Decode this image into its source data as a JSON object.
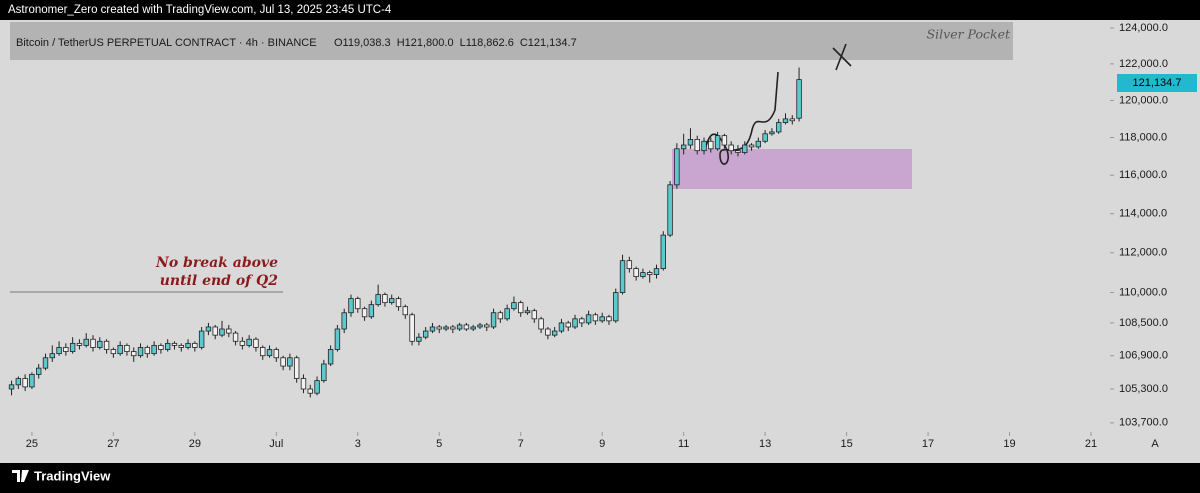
{
  "chart_data": {
    "type": "candlestick",
    "title": "Astronomer_Zero created with TradingView.com, Jul 13, 2025 23:45 UTC-4",
    "symbol": "Bitcoin / TetherUS PERPETUAL CONTRACT · 4h · BINANCE",
    "legend_ohlc": [
      "O119,038.3",
      "H121,800.0",
      "L118,862.6",
      "C121,134.7"
    ],
    "last_price_label": "121,134.7",
    "brand": "TradingView",
    "scale_mode": "A",
    "annotations": {
      "zone_label": "Silver Pocket",
      "note": [
        "No break above",
        "until end of Q2"
      ]
    },
    "log": true,
    "up_color": "#5ec8cf",
    "down_color": "#f2f2f2",
    "xlim": [
      -1.7,
      161.8
    ],
    "ylim": [
      103270,
      124450
    ],
    "xticks": [
      {
        "value": 3,
        "label": "25"
      },
      {
        "value": 15,
        "label": "27"
      },
      {
        "value": 27,
        "label": "29"
      },
      {
        "value": 39,
        "label": "Jul"
      },
      {
        "value": 51,
        "label": "3"
      },
      {
        "value": 63,
        "label": "5"
      },
      {
        "value": 75,
        "label": "7"
      },
      {
        "value": 87,
        "label": "9"
      },
      {
        "value": 99,
        "label": "11"
      },
      {
        "value": 111,
        "label": "13"
      },
      {
        "value": 123,
        "label": "15"
      },
      {
        "value": 135,
        "label": "17"
      },
      {
        "value": 147,
        "label": "19"
      },
      {
        "value": 159,
        "label": "21"
      }
    ],
    "yticks": [
      {
        "value": 124000,
        "label": "124,000.0"
      },
      {
        "value": 122000,
        "label": "122,000.0"
      },
      {
        "value": 120000,
        "label": "120,000.0"
      },
      {
        "value": 118000,
        "label": "118,000.0"
      },
      {
        "value": 116000,
        "label": "116,000.0"
      },
      {
        "value": 114000,
        "label": "114,000.0"
      },
      {
        "value": 112000,
        "label": "112,000.0"
      },
      {
        "value": 110000,
        "label": "110,000.0"
      },
      {
        "value": 108500,
        "label": "108,500.0"
      },
      {
        "value": 106900,
        "label": "106,900.0"
      },
      {
        "value": 105300,
        "label": "105,300.0"
      },
      {
        "value": 103700,
        "label": "103,700.0"
      }
    ],
    "ohlc": [
      [
        105300,
        105700,
        105000,
        105500
      ],
      [
        105500,
        105900,
        105300,
        105800
      ],
      [
        105800,
        106000,
        105200,
        105400
      ],
      [
        105400,
        106100,
        105300,
        106000
      ],
      [
        106000,
        106500,
        105800,
        106300
      ],
      [
        106300,
        107000,
        106200,
        106800
      ],
      [
        106800,
        107400,
        106600,
        107000
      ],
      [
        107000,
        107600,
        106900,
        107300
      ],
      [
        107300,
        107500,
        106900,
        107100
      ],
      [
        107100,
        107800,
        107000,
        107500
      ],
      [
        107500,
        107700,
        107200,
        107400
      ],
      [
        107400,
        108000,
        107300,
        107700
      ],
      [
        107700,
        107900,
        107100,
        107300
      ],
      [
        107300,
        107800,
        107200,
        107600
      ],
      [
        107600,
        107700,
        107000,
        107200
      ],
      [
        107200,
        107300,
        106800,
        107000
      ],
      [
        107000,
        107600,
        106900,
        107400
      ],
      [
        107400,
        107500,
        106900,
        107100
      ],
      [
        107100,
        107300,
        106600,
        106900
      ],
      [
        106900,
        107500,
        106800,
        107300
      ],
      [
        107300,
        107400,
        106800,
        107000
      ],
      [
        107000,
        107600,
        106900,
        107400
      ],
      [
        107400,
        107500,
        107000,
        107200
      ],
      [
        107200,
        107700,
        107100,
        107500
      ],
      [
        107500,
        107600,
        107200,
        107400
      ],
      [
        107400,
        107500,
        107100,
        107300
      ],
      [
        107300,
        107700,
        107200,
        107500
      ],
      [
        107500,
        107600,
        107100,
        107300
      ],
      [
        107300,
        108300,
        107200,
        108100
      ],
      [
        108100,
        108500,
        107900,
        108300
      ],
      [
        108300,
        108400,
        107700,
        107900
      ],
      [
        107900,
        108600,
        107800,
        108200
      ],
      [
        108200,
        108400,
        107800,
        108000
      ],
      [
        108000,
        108100,
        107400,
        107600
      ],
      [
        107600,
        107800,
        107200,
        107400
      ],
      [
        107400,
        107900,
        107300,
        107700
      ],
      [
        107700,
        107800,
        107100,
        107300
      ],
      [
        107300,
        107400,
        106700,
        106900
      ],
      [
        106900,
        107400,
        106800,
        107200
      ],
      [
        107200,
        107300,
        106600,
        106800
      ],
      [
        106800,
        106900,
        106200,
        106400
      ],
      [
        106400,
        107000,
        106200,
        106800
      ],
      [
        106800,
        106900,
        105600,
        105800
      ],
      [
        105800,
        106000,
        105100,
        105300
      ],
      [
        105300,
        105500,
        104900,
        105100
      ],
      [
        105100,
        105900,
        105000,
        105700
      ],
      [
        105700,
        106700,
        105600,
        106500
      ],
      [
        106500,
        107400,
        106400,
        107200
      ],
      [
        107200,
        108400,
        107100,
        108200
      ],
      [
        108200,
        109200,
        108000,
        109000
      ],
      [
        109000,
        109900,
        108800,
        109700
      ],
      [
        109700,
        109800,
        109000,
        109200
      ],
      [
        109200,
        109300,
        108600,
        108800
      ],
      [
        108800,
        109600,
        108700,
        109400
      ],
      [
        109400,
        110400,
        109300,
        109900
      ],
      [
        109900,
        110000,
        109300,
        109500
      ],
      [
        109500,
        109900,
        109400,
        109700
      ],
      [
        109700,
        109800,
        109100,
        109300
      ],
      [
        109300,
        109400,
        108700,
        108900
      ],
      [
        108900,
        109000,
        107400,
        107600
      ],
      [
        107600,
        108000,
        107400,
        107800
      ],
      [
        107800,
        108300,
        107700,
        108100
      ],
      [
        108100,
        108500,
        108000,
        108300
      ],
      [
        108300,
        108400,
        108000,
        108200
      ],
      [
        108200,
        108400,
        108100,
        108300
      ],
      [
        108300,
        108400,
        108000,
        108200
      ],
      [
        108200,
        108500,
        108100,
        108400
      ],
      [
        108400,
        108500,
        108100,
        108200
      ],
      [
        108200,
        108400,
        108100,
        108300
      ],
      [
        108300,
        108500,
        108200,
        108400
      ],
      [
        108400,
        108500,
        108100,
        108300
      ],
      [
        108300,
        109200,
        108200,
        109000
      ],
      [
        109000,
        109100,
        108500,
        108700
      ],
      [
        108700,
        109400,
        108600,
        109200
      ],
      [
        109200,
        109800,
        109100,
        109500
      ],
      [
        109500,
        109600,
        108800,
        109000
      ],
      [
        109000,
        109300,
        108900,
        109100
      ],
      [
        109100,
        109200,
        108500,
        108700
      ],
      [
        108700,
        108800,
        108000,
        108200
      ],
      [
        108200,
        108300,
        107700,
        107900
      ],
      [
        107900,
        108300,
        107800,
        108100
      ],
      [
        108100,
        108700,
        108000,
        108500
      ],
      [
        108500,
        108600,
        108100,
        108300
      ],
      [
        108300,
        108900,
        108200,
        108700
      ],
      [
        108700,
        108800,
        108300,
        108500
      ],
      [
        108500,
        109100,
        108400,
        108900
      ],
      [
        108900,
        109000,
        108400,
        108600
      ],
      [
        108600,
        109000,
        108500,
        108800
      ],
      [
        108800,
        108900,
        108400,
        108600
      ],
      [
        108600,
        110200,
        108500,
        110000
      ],
      [
        110000,
        111900,
        109900,
        111600
      ],
      [
        111600,
        111800,
        111000,
        111200
      ],
      [
        111200,
        111300,
        110600,
        110800
      ],
      [
        110800,
        111200,
        110700,
        111000
      ],
      [
        111000,
        111100,
        110500,
        110900
      ],
      [
        110900,
        111400,
        110700,
        111200
      ],
      [
        111200,
        113100,
        111100,
        112900
      ],
      [
        112900,
        115700,
        112800,
        115500
      ],
      [
        115500,
        117700,
        115300,
        117400
      ],
      [
        117400,
        118200,
        117100,
        117600
      ],
      [
        117600,
        118500,
        117400,
        117900
      ],
      [
        117900,
        118100,
        117100,
        117300
      ],
      [
        117300,
        118000,
        117100,
        117800
      ],
      [
        117800,
        118000,
        117200,
        117400
      ],
      [
        117400,
        118300,
        117300,
        118100
      ],
      [
        118100,
        118200,
        117400,
        117600
      ],
      [
        117600,
        117800,
        117100,
        117300
      ],
      [
        117300,
        117600,
        117000,
        117200
      ],
      [
        117200,
        117800,
        117100,
        117600
      ],
      [
        117600,
        117700,
        117300,
        117500
      ],
      [
        117500,
        118000,
        117400,
        117800
      ],
      [
        117800,
        118400,
        117700,
        118200
      ],
      [
        118200,
        118500,
        118100,
        118300
      ],
      [
        118300,
        119000,
        118200,
        118800
      ],
      [
        118800,
        119300,
        118700,
        119000
      ],
      [
        119000,
        119200,
        118700,
        118900
      ],
      [
        119038.3,
        121800,
        118862.6,
        121134.7
      ]
    ]
  }
}
